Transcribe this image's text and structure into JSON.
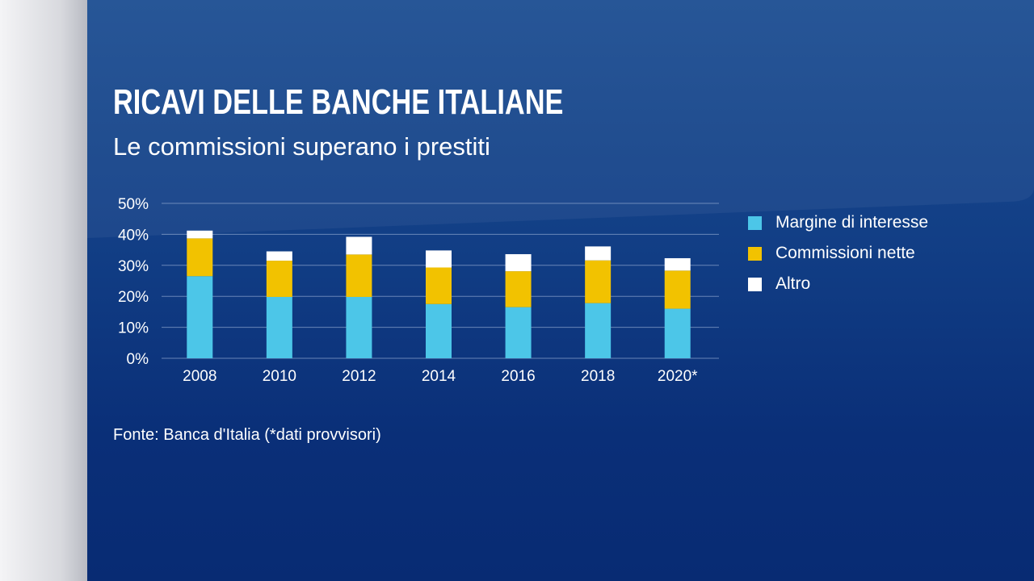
{
  "title": "RICAVI DELLE BANCHE ITALIANE",
  "subtitle": "Le commissioni superano i prestiti",
  "source": "Fonte: Banca d'Italia (*dati provvisori)",
  "colors": {
    "margine": "#4cc6e8",
    "commissioni": "#f2c200",
    "altro": "#ffffff"
  },
  "chart_data": {
    "type": "bar",
    "stacked": true,
    "categories": [
      "2008",
      "2010",
      "2012",
      "2014",
      "2016",
      "2018",
      "2020*"
    ],
    "series": [
      {
        "name": "Margine di interesse",
        "values": [
          26.5,
          19.8,
          19.8,
          17.5,
          16.5,
          17.8,
          16.0
        ]
      },
      {
        "name": "Commissioni nette",
        "values": [
          12.2,
          11.7,
          13.7,
          11.8,
          11.6,
          13.8,
          12.3
        ]
      },
      {
        "name": "Altro",
        "values": [
          2.5,
          3.0,
          5.7,
          5.5,
          5.5,
          4.5,
          4.0
        ]
      }
    ],
    "yticks": [
      "0%",
      "10%",
      "20%",
      "30%",
      "40%",
      "50%"
    ],
    "ylim": [
      0,
      50
    ],
    "grid": true,
    "legend_position": "right"
  },
  "legend": {
    "items": [
      {
        "label": "Margine di interesse",
        "color_key": "margine"
      },
      {
        "label": "Commissioni nette",
        "color_key": "commissioni"
      },
      {
        "label": "Altro",
        "color_key": "altro"
      }
    ]
  }
}
